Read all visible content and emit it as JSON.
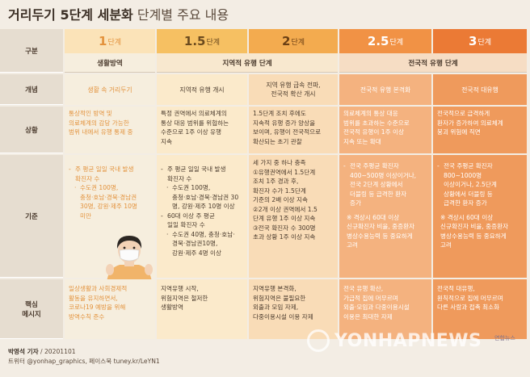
{
  "title": {
    "bold": "거리두기 5단계 세분화",
    "light": " 단계별 주요 내용"
  },
  "row_labels": {
    "category": "구분",
    "concept": "개념",
    "situation": "상황",
    "criteria": "기준",
    "message": "핵심\n메시지"
  },
  "stages": [
    {
      "num": "1",
      "unit": "단계"
    },
    {
      "num": "1.5",
      "unit": "단계"
    },
    {
      "num": "2",
      "unit": "단계"
    },
    {
      "num": "2.5",
      "unit": "단계"
    },
    {
      "num": "3",
      "unit": "단계"
    }
  ],
  "groups": {
    "prevention": "생활방역",
    "regional": "지역적 유행 단계",
    "nationwide": "전국적 유행 단계"
  },
  "concepts": [
    "생활 속 거리두기",
    "지역적 유행 개시",
    "지역 유행 급속 전파,\n전국적 확산 개시",
    "전국적 유행 본격화",
    "전국적 대유행"
  ],
  "situations": [
    "통상적인 방역 및\n의료체계의 감당 가능한\n범위 내에서 유행 통제 중",
    "특정 권역에서 의료체계의\n통상 대응 범위를 위협하는\n수준으로 1주 이상 유행\n지속",
    "1.5단계 조치 후에도\n지속적 유행 증가 양상을\n보이며, 유행이 전국적으로\n확산되는 초기 관찰",
    "의료체계의 통상 대응\n범위를 초과하는 수준으로\n전국적 유행이 1주 이상\n지속 또는 확대",
    "전국적으로 급격하게\n환자가 증가하여 의료체계\n붕괴 위험에 직면"
  ],
  "criteria": {
    "s1": {
      "bullet": "주 평균 일일 국내 발생\n확진자 수",
      "subs": [
        "수도권 100명,\n충청·호남·경북·경남권\n30명, 강원·제주 10명\n미만"
      ]
    },
    "s15": {
      "bullet1": "주 평균 일일 국내 발생\n확진자 수",
      "subs1": [
        "수도권 100명,\n충청·호남·경북·경남권 30\n명, 강원·제주 10명 이상"
      ],
      "bullet2": "60대 이상 주 평균\n일일 확진자 수",
      "subs2": [
        "수도권 40명, 충청·호남·\n경북·경남권10명,\n강원·제주 4명 이상"
      ]
    },
    "s2": {
      "intro": "세 가지 중 하나 충족",
      "items": [
        "①유행권역에서 1.5단계\n조치 1주 경과 후,\n확진자 수가 1.5단계\n기준의 2배 이상 지속",
        "②2개 이상 권역에서 1.5\n단계 유행 1주 이상 지속",
        "③전국 확진자 수 300명\n초과 상황 1주 이상 지속"
      ]
    },
    "s25": {
      "bullet1": "전국 주평균 확진자\n400~500명 이상이거나,\n전국 2단계 상황에서\n더블링 등 급격한 환자\n증가",
      "note": "※ 격상시 60대 이상\n신규확진자 비율, 중증환자\n병상수용능력 등 중요하게\n고려"
    },
    "s3": {
      "bullet1": "전국 주평균 확진자\n800~1000명\n이상이거나, 2.5단계\n상황에서 더블링 등\n급격한 환자 증가",
      "note": "※ 격상시 60대 이상\n신규확진자 비율, 중증환자\n병상수용능력 등 중요하게\n고려"
    }
  },
  "messages": [
    "일상생활과 사회경제적\n활동을 유지하면서,\n코로나19 예방을 위해\n방역수칙 준수",
    "지역유행 시작,\n위험지역은 철저한\n생활방역",
    "지역유행 본격화,\n위험지역은 불필요한\n외출과 모임 자제,\n다중이용시설 이용 자제",
    "전국 유행 확산,\n가급적 집에 머무르며\n외출·모임과 다중이용시설\n이용은 최대한 자제",
    "전국적 대유행,\n원칙적으로 집에 머무르며\n다른 사람과 접촉 최소화"
  ],
  "footer": {
    "reporter": "박영석 기자",
    "date": " / 20201101",
    "social": "트위터 @yonhap_graphics, 페이스북 tuney.kr/LeYN1"
  },
  "watermark": {
    "text": "YONHAPNEWS",
    "small": "연합뉴스"
  },
  "colors": {
    "stage1_header": "#fbe3b8",
    "stage15_header": "#f6c062",
    "stage2_header": "#f3ab4f",
    "stage25_header": "#f19245",
    "stage3_header": "#eb7a35",
    "stage1_body": "#f6eede",
    "stage15_body": "#fbeacb",
    "stage2_body": "#f9dcb7",
    "stage25_body": "#f4b27f",
    "stage3_body": "#ef9a5c"
  },
  "icons": [
    "masked-person-icon",
    "yonhap-logo-icon"
  ]
}
